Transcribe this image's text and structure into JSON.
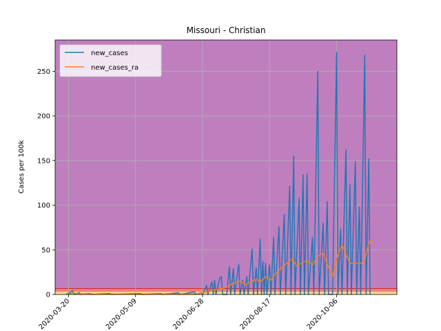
{
  "chart_data": {
    "type": "line",
    "title": "Missouri - Christian",
    "xlabel": "",
    "ylabel": "Cases per 100k",
    "x_start": "2020-03-10",
    "x_end": "2020-11-20",
    "xlim": [
      "2020-03-10",
      "2020-11-20"
    ],
    "ylim": [
      0,
      285
    ],
    "yticks": [
      0,
      50,
      100,
      150,
      200,
      250
    ],
    "xticks": [
      "2020-03-20",
      "2020-05-09",
      "2020-06-28",
      "2020-08-17",
      "2020-10-06"
    ],
    "grid": true,
    "legend_position": "top-left",
    "background_bands": [
      {
        "from": 0,
        "to": 1,
        "color": "#ffff99"
      },
      {
        "from": 1,
        "to": 3,
        "color": "#ffd27f"
      },
      {
        "from": 3,
        "to": 6,
        "color": "#f08080"
      },
      {
        "from": 6,
        "to": 285,
        "color": "#bf7fbf"
      }
    ],
    "band_line": {
      "value": 6.5,
      "color": "#d62728"
    },
    "series": [
      {
        "name": "new_cases",
        "color": "#1f77b4",
        "points": [
          [
            "2020-03-18",
            0
          ],
          [
            "2020-03-21",
            2
          ],
          [
            "2020-03-23",
            4
          ],
          [
            "2020-03-24",
            0
          ],
          [
            "2020-03-28",
            2
          ],
          [
            "2020-03-29",
            0
          ],
          [
            "2020-04-05",
            1
          ],
          [
            "2020-04-06",
            0
          ],
          [
            "2020-04-20",
            1
          ],
          [
            "2020-04-21",
            0
          ],
          [
            "2020-05-13",
            1
          ],
          [
            "2020-05-14",
            0
          ],
          [
            "2020-05-28",
            1
          ],
          [
            "2020-05-29",
            0
          ],
          [
            "2020-06-10",
            2
          ],
          [
            "2020-06-11",
            0
          ],
          [
            "2020-06-22",
            3
          ],
          [
            "2020-06-23",
            0
          ],
          [
            "2020-06-27",
            2
          ],
          [
            "2020-06-28",
            0
          ],
          [
            "2020-07-01",
            10
          ],
          [
            "2020-07-02",
            0
          ],
          [
            "2020-07-05",
            14
          ],
          [
            "2020-07-06",
            0
          ],
          [
            "2020-07-07",
            16
          ],
          [
            "2020-07-08",
            0
          ],
          [
            "2020-07-11",
            19
          ],
          [
            "2020-07-12",
            20
          ],
          [
            "2020-07-13",
            0
          ],
          [
            "2020-07-16",
            0
          ],
          [
            "2020-07-18",
            31
          ],
          [
            "2020-07-19",
            0
          ],
          [
            "2020-07-21",
            29
          ],
          [
            "2020-07-22",
            0
          ],
          [
            "2020-07-25",
            34
          ],
          [
            "2020-07-26",
            0
          ],
          [
            "2020-07-28",
            16
          ],
          [
            "2020-07-29",
            0
          ],
          [
            "2020-07-31",
            20
          ],
          [
            "2020-08-01",
            0
          ],
          [
            "2020-08-04",
            51
          ],
          [
            "2020-08-05",
            0
          ],
          [
            "2020-08-07",
            30
          ],
          [
            "2020-08-08",
            0
          ],
          [
            "2020-08-10",
            62
          ],
          [
            "2020-08-11",
            0
          ],
          [
            "2020-08-12",
            37
          ],
          [
            "2020-08-13",
            0
          ],
          [
            "2020-08-14",
            35
          ],
          [
            "2020-08-15",
            0
          ],
          [
            "2020-08-17",
            33
          ],
          [
            "2020-08-18",
            0
          ],
          [
            "2020-08-20",
            64
          ],
          [
            "2020-08-21",
            0
          ],
          [
            "2020-08-24",
            76
          ],
          [
            "2020-08-25",
            0
          ],
          [
            "2020-08-28",
            90
          ],
          [
            "2020-08-29",
            0
          ],
          [
            "2020-09-01",
            121
          ],
          [
            "2020-09-02",
            0
          ],
          [
            "2020-09-04",
            155
          ],
          [
            "2020-09-05",
            0
          ],
          [
            "2020-09-08",
            108
          ],
          [
            "2020-09-09",
            0
          ],
          [
            "2020-09-11",
            134
          ],
          [
            "2020-09-12",
            0
          ],
          [
            "2020-09-14",
            135
          ],
          [
            "2020-09-15",
            0
          ],
          [
            "2020-09-18",
            64
          ],
          [
            "2020-09-19",
            0
          ],
          [
            "2020-09-22",
            250
          ],
          [
            "2020-09-23",
            0
          ],
          [
            "2020-09-26",
            80
          ],
          [
            "2020-09-27",
            0
          ],
          [
            "2020-09-29",
            104
          ],
          [
            "2020-09-30",
            0
          ],
          [
            "2020-10-03",
            0
          ],
          [
            "2020-10-06",
            271
          ],
          [
            "2020-10-07",
            0
          ],
          [
            "2020-10-09",
            73
          ],
          [
            "2020-10-10",
            0
          ],
          [
            "2020-10-13",
            162
          ],
          [
            "2020-10-14",
            0
          ],
          [
            "2020-10-16",
            123
          ],
          [
            "2020-10-17",
            0
          ],
          [
            "2020-10-20",
            149
          ],
          [
            "2020-10-21",
            0
          ],
          [
            "2020-10-23",
            98
          ],
          [
            "2020-10-24",
            0
          ],
          [
            "2020-10-27",
            268
          ],
          [
            "2020-10-28",
            0
          ],
          [
            "2020-10-30",
            152
          ],
          [
            "2020-10-31",
            0
          ]
        ]
      },
      {
        "name": "new_cases_ra",
        "color": "#ff7f0e",
        "points": [
          [
            "2020-03-18",
            0
          ],
          [
            "2020-03-23",
            1.5
          ],
          [
            "2020-03-30",
            0.5
          ],
          [
            "2020-04-10",
            0.2
          ],
          [
            "2020-05-10",
            0.3
          ],
          [
            "2020-06-10",
            0.5
          ],
          [
            "2020-06-25",
            0.8
          ],
          [
            "2020-07-01",
            2.5
          ],
          [
            "2020-07-05",
            5
          ],
          [
            "2020-07-10",
            6
          ],
          [
            "2020-07-14",
            7
          ],
          [
            "2020-07-18",
            10
          ],
          [
            "2020-07-22",
            13
          ],
          [
            "2020-07-26",
            15
          ],
          [
            "2020-07-30",
            11
          ],
          [
            "2020-08-03",
            14
          ],
          [
            "2020-08-07",
            17
          ],
          [
            "2020-08-10",
            14
          ],
          [
            "2020-08-14",
            20
          ],
          [
            "2020-08-18",
            16
          ],
          [
            "2020-08-22",
            24
          ],
          [
            "2020-08-26",
            30
          ],
          [
            "2020-08-30",
            35
          ],
          [
            "2020-09-03",
            40
          ],
          [
            "2020-09-06",
            32
          ],
          [
            "2020-09-10",
            35
          ],
          [
            "2020-09-14",
            38
          ],
          [
            "2020-09-18",
            33
          ],
          [
            "2020-09-22",
            43
          ],
          [
            "2020-09-26",
            46
          ],
          [
            "2020-09-30",
            30
          ],
          [
            "2020-10-03",
            20
          ],
          [
            "2020-10-06",
            40
          ],
          [
            "2020-10-10",
            56
          ],
          [
            "2020-10-13",
            45
          ],
          [
            "2020-10-16",
            35
          ],
          [
            "2020-10-20",
            35
          ],
          [
            "2020-10-24",
            35
          ],
          [
            "2020-10-27",
            38
          ],
          [
            "2020-10-29",
            52
          ],
          [
            "2020-10-31",
            60
          ],
          [
            "2020-11-01",
            60
          ]
        ]
      }
    ]
  }
}
